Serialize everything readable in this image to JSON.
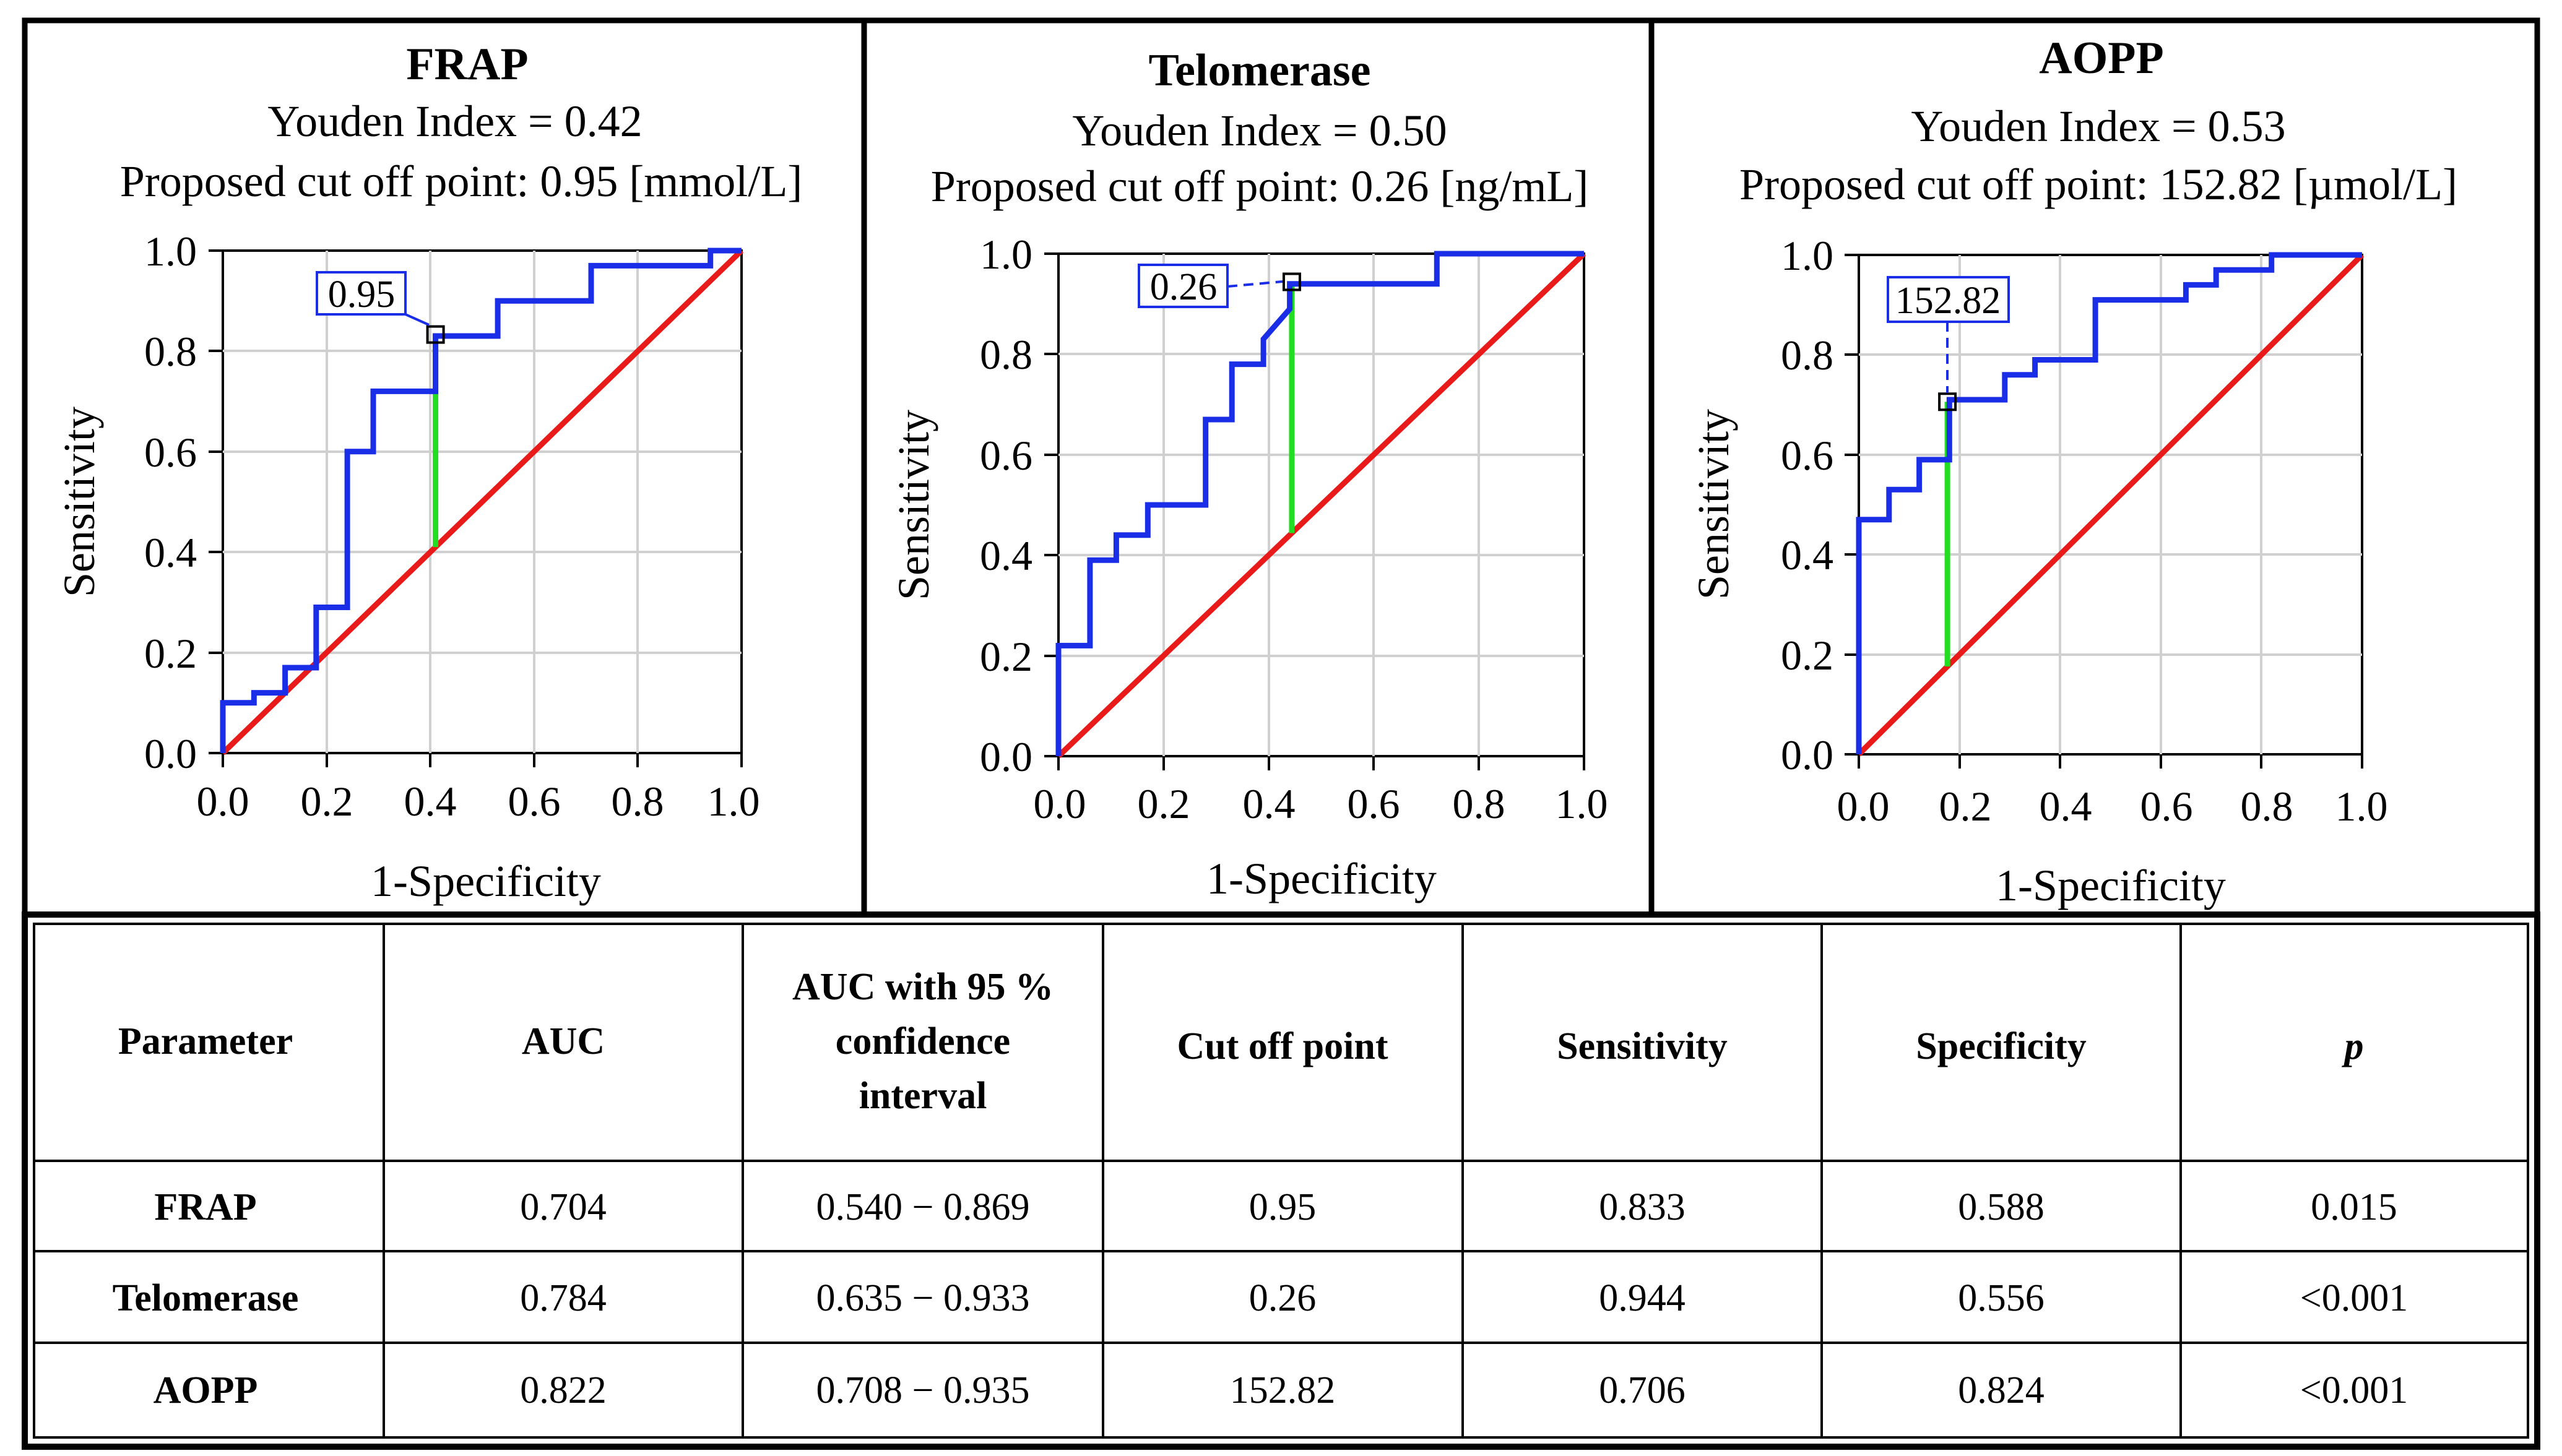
{
  "chart_data": [
    {
      "type": "line",
      "title": "FRAP",
      "subtitle_lines": [
        "Youden Index  = 0.42",
        "Proposed cut off point: 0.95 [mmol/L]"
      ],
      "xlabel": "1-Specificity",
      "ylabel": "Sensitivity",
      "xlim": [
        0,
        1
      ],
      "ylim": [
        0,
        1
      ],
      "xticks": [
        "0.0",
        "0.2",
        "0.4",
        "0.6",
        "0.8",
        "1.0"
      ],
      "yticks": [
        "0.0",
        "0.2",
        "0.4",
        "0.6",
        "0.8",
        "1.0"
      ],
      "grid": true,
      "roc_color": "#1a2ee8",
      "reference_color": "#e81a1a",
      "youden_color": "#22dd22",
      "roc_points": [
        [
          0,
          0
        ],
        [
          0,
          0.1
        ],
        [
          0.06,
          0.1
        ],
        [
          0.06,
          0.12
        ],
        [
          0.12,
          0.12
        ],
        [
          0.12,
          0.17
        ],
        [
          0.18,
          0.17
        ],
        [
          0.18,
          0.29
        ],
        [
          0.24,
          0.29
        ],
        [
          0.24,
          0.6
        ],
        [
          0.29,
          0.6
        ],
        [
          0.29,
          0.72
        ],
        [
          0.41,
          0.72
        ],
        [
          0.41,
          0.83
        ],
        [
          0.53,
          0.83
        ],
        [
          0.53,
          0.9
        ],
        [
          0.71,
          0.9
        ],
        [
          0.71,
          0.97
        ],
        [
          0.94,
          0.97
        ],
        [
          0.94,
          1
        ],
        [
          1,
          1
        ]
      ],
      "cut_point": {
        "x": 0.41,
        "y": 0.833,
        "label": "0.95"
      }
    },
    {
      "type": "line",
      "title": "Telomerase",
      "subtitle_lines": [
        "Youden Index = 0.50",
        "Proposed cut off point: 0.26 [ng/mL]"
      ],
      "xlabel": "1-Specificity",
      "ylabel": "Sensitivity",
      "xlim": [
        0,
        1
      ],
      "ylim": [
        0,
        1
      ],
      "xticks": [
        "0.0",
        "0.2",
        "0.4",
        "0.6",
        "0.8",
        "1.0"
      ],
      "yticks": [
        "0.0",
        "0.2",
        "0.4",
        "0.6",
        "0.8",
        "1.0"
      ],
      "grid": true,
      "roc_color": "#1a2ee8",
      "reference_color": "#e81a1a",
      "youden_color": "#22dd22",
      "roc_points": [
        [
          0,
          0
        ],
        [
          0,
          0.22
        ],
        [
          0.06,
          0.22
        ],
        [
          0.06,
          0.39
        ],
        [
          0.11,
          0.39
        ],
        [
          0.11,
          0.44
        ],
        [
          0.17,
          0.44
        ],
        [
          0.17,
          0.5
        ],
        [
          0.28,
          0.5
        ],
        [
          0.28,
          0.67
        ],
        [
          0.33,
          0.67
        ],
        [
          0.33,
          0.72
        ],
        [
          0.33,
          0.78
        ],
        [
          0.39,
          0.78
        ],
        [
          0.39,
          0.83
        ],
        [
          0.44,
          0.89
        ],
        [
          0.44,
          0.94
        ],
        [
          0.72,
          0.94
        ],
        [
          0.72,
          1
        ],
        [
          1,
          1
        ]
      ],
      "cut_point": {
        "x": 0.444,
        "y": 0.944,
        "label": "0.26"
      }
    },
    {
      "type": "line",
      "title": "AOPP",
      "subtitle_lines": [
        "Youden Index = 0.53",
        "Proposed cut off point: 152.82 [µmol/L]"
      ],
      "xlabel": "1-Specificity",
      "ylabel": "Sensitivity",
      "xlim": [
        0,
        1
      ],
      "ylim": [
        0,
        1
      ],
      "xticks": [
        "0.0",
        "0.2",
        "0.4",
        "0.6",
        "0.8",
        "1.0"
      ],
      "yticks": [
        "0.0",
        "0.2",
        "0.4",
        "0.6",
        "0.8",
        "1.0"
      ],
      "grid": true,
      "roc_color": "#1a2ee8",
      "reference_color": "#e81a1a",
      "youden_color": "#22dd22",
      "roc_points": [
        [
          0,
          0
        ],
        [
          0,
          0.47
        ],
        [
          0.06,
          0.47
        ],
        [
          0.06,
          0.53
        ],
        [
          0.12,
          0.53
        ],
        [
          0.12,
          0.59
        ],
        [
          0.18,
          0.59
        ],
        [
          0.18,
          0.71
        ],
        [
          0.29,
          0.71
        ],
        [
          0.29,
          0.76
        ],
        [
          0.35,
          0.76
        ],
        [
          0.35,
          0.79
        ],
        [
          0.47,
          0.79
        ],
        [
          0.47,
          0.91
        ],
        [
          0.65,
          0.91
        ],
        [
          0.65,
          0.94
        ],
        [
          0.71,
          0.94
        ],
        [
          0.71,
          0.97
        ],
        [
          0.82,
          0.97
        ],
        [
          0.82,
          1
        ],
        [
          1,
          1
        ]
      ],
      "cut_point": {
        "x": 0.176,
        "y": 0.706,
        "label": "152.82"
      }
    },
    {
      "type": "table",
      "columns": [
        "Parameter",
        "AUC",
        "AUC with 95 % confidence interval",
        "Cut off point",
        "Sensitivity",
        "Specificity",
        "p"
      ],
      "rows": [
        [
          "FRAP",
          "0.704",
          "0.540 − 0.869",
          "0.95",
          "0.833",
          "0.588",
          "0.015"
        ],
        [
          "Telomerase",
          "0.784",
          "0.635 − 0.933",
          "0.26",
          "0.944",
          "0.556",
          "<0.001"
        ],
        [
          "AOPP",
          "0.822",
          "0.708 − 0.935",
          "152.82",
          "0.706",
          "0.824",
          "<0.001"
        ]
      ]
    }
  ],
  "table_header_lines": {
    "ci": [
      "AUC with 95 %",
      "confidence",
      "interval"
    ]
  }
}
